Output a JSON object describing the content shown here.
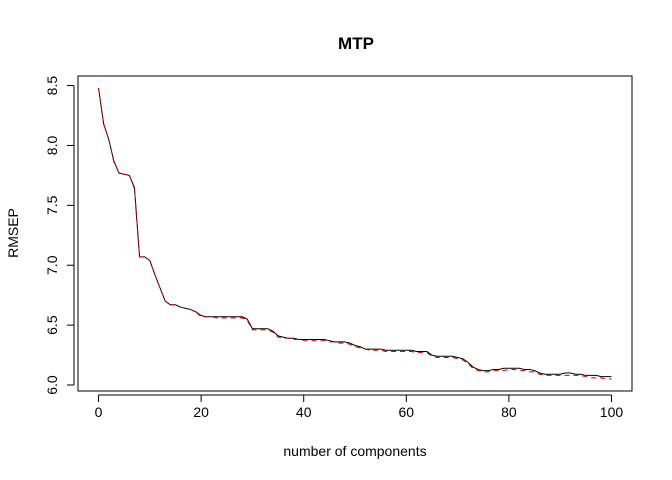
{
  "chart_data": {
    "type": "line",
    "title": "MTP",
    "xlabel": "number of components",
    "ylabel": "RMSEP",
    "xlim": [
      -4,
      104
    ],
    "ylim": [
      5.95,
      8.58
    ],
    "xticks": [
      0,
      20,
      40,
      60,
      80,
      100
    ],
    "yticks": [
      6.0,
      6.5,
      7.0,
      7.5,
      8.0,
      8.5
    ],
    "xtick_labels": [
      "0",
      "20",
      "40",
      "60",
      "80",
      "100"
    ],
    "ytick_labels": [
      "6.0",
      "6.5",
      "7.0",
      "7.5",
      "8.0",
      "8.5"
    ],
    "grid": false,
    "x": [
      0,
      1,
      2,
      3,
      4,
      5,
      6,
      7,
      8,
      9,
      10,
      11,
      12,
      13,
      14,
      15,
      16,
      17,
      18,
      19,
      20,
      21,
      22,
      23,
      24,
      25,
      26,
      27,
      28,
      29,
      30,
      31,
      32,
      33,
      34,
      35,
      36,
      37,
      38,
      39,
      40,
      41,
      42,
      43,
      44,
      45,
      46,
      47,
      48,
      49,
      50,
      51,
      52,
      53,
      54,
      55,
      56,
      57,
      58,
      59,
      60,
      61,
      62,
      63,
      64,
      65,
      66,
      67,
      68,
      69,
      70,
      71,
      72,
      73,
      74,
      75,
      76,
      77,
      78,
      79,
      80,
      81,
      82,
      83,
      84,
      85,
      86,
      87,
      88,
      89,
      90,
      91,
      92,
      93,
      94,
      95,
      96,
      97,
      98,
      99,
      100
    ],
    "series": [
      {
        "color": "#000000",
        "style": "solid",
        "values": [
          8.48,
          8.18,
          8.05,
          7.87,
          7.77,
          7.76,
          7.75,
          7.65,
          7.07,
          7.07,
          7.04,
          6.92,
          6.81,
          6.7,
          6.67,
          6.67,
          6.65,
          6.64,
          6.63,
          6.61,
          6.58,
          6.57,
          6.57,
          6.57,
          6.57,
          6.57,
          6.57,
          6.57,
          6.57,
          6.55,
          6.47,
          6.47,
          6.47,
          6.47,
          6.45,
          6.41,
          6.4,
          6.39,
          6.39,
          6.38,
          6.38,
          6.38,
          6.38,
          6.38,
          6.38,
          6.37,
          6.36,
          6.36,
          6.36,
          6.35,
          6.33,
          6.32,
          6.3,
          6.3,
          6.3,
          6.3,
          6.29,
          6.29,
          6.29,
          6.29,
          6.29,
          6.29,
          6.28,
          6.28,
          6.28,
          6.25,
          6.24,
          6.24,
          6.24,
          6.24,
          6.23,
          6.22,
          6.19,
          6.15,
          6.13,
          6.12,
          6.12,
          6.13,
          6.13,
          6.14,
          6.14,
          6.14,
          6.14,
          6.13,
          6.13,
          6.12,
          6.1,
          6.09,
          6.09,
          6.09,
          6.09,
          6.1,
          6.1,
          6.09,
          6.09,
          6.08,
          6.08,
          6.08,
          6.07,
          6.07,
          6.07
        ]
      },
      {
        "color": "#cc0000",
        "style": "dashed",
        "values": [
          8.48,
          8.18,
          8.05,
          7.86,
          7.77,
          7.76,
          7.75,
          7.64,
          7.07,
          7.07,
          7.04,
          6.92,
          6.81,
          6.7,
          6.67,
          6.67,
          6.65,
          6.64,
          6.63,
          6.61,
          6.57,
          6.57,
          6.57,
          6.56,
          6.56,
          6.56,
          6.56,
          6.56,
          6.56,
          6.54,
          6.46,
          6.46,
          6.46,
          6.46,
          6.44,
          6.4,
          6.39,
          6.39,
          6.38,
          6.38,
          6.37,
          6.37,
          6.37,
          6.37,
          6.37,
          6.36,
          6.36,
          6.35,
          6.35,
          6.34,
          6.32,
          6.31,
          6.3,
          6.29,
          6.29,
          6.29,
          6.28,
          6.28,
          6.28,
          6.28,
          6.28,
          6.28,
          6.27,
          6.27,
          6.27,
          6.24,
          6.23,
          6.23,
          6.23,
          6.23,
          6.22,
          6.21,
          6.18,
          6.14,
          6.12,
          6.11,
          6.11,
          6.12,
          6.12,
          6.12,
          6.13,
          6.13,
          6.12,
          6.12,
          6.11,
          6.11,
          6.09,
          6.08,
          6.08,
          6.08,
          6.08,
          6.08,
          6.08,
          6.08,
          6.08,
          6.07,
          6.06,
          6.06,
          6.06,
          6.05,
          6.05
        ]
      }
    ]
  }
}
